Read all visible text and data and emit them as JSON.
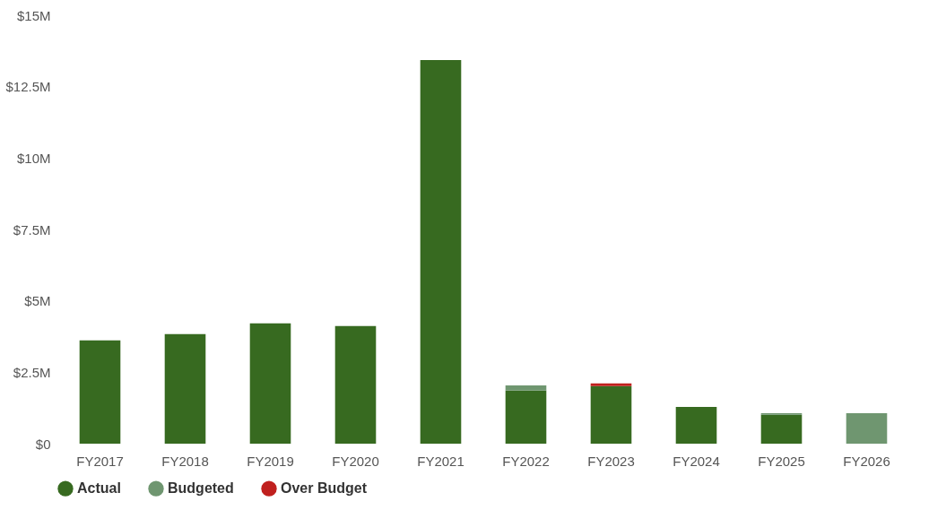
{
  "chart_data": {
    "type": "bar",
    "stacked": true,
    "categories": [
      "FY2017",
      "FY2018",
      "FY2019",
      "FY2020",
      "FY2021",
      "FY2022",
      "FY2023",
      "FY2024",
      "FY2025",
      "FY2026"
    ],
    "series": [
      {
        "name": "Actual",
        "color": "#376a20",
        "values": [
          3.62,
          3.84,
          4.21,
          4.12,
          13.43,
          1.86,
          2.02,
          1.29,
          1.01,
          null
        ]
      },
      {
        "name": "Budgeted",
        "color": "#6f9670",
        "values": [
          null,
          null,
          null,
          null,
          null,
          0.18,
          null,
          null,
          0.06,
          1.07
        ]
      },
      {
        "name": "Over Budget",
        "color": "#c0201e",
        "values": [
          null,
          null,
          null,
          null,
          null,
          null,
          0.09,
          null,
          null,
          null
        ]
      }
    ],
    "ylim": [
      0,
      15
    ],
    "yticks": [
      {
        "value": 0,
        "label": "$0"
      },
      {
        "value": 2.5,
        "label": "$2.5M"
      },
      {
        "value": 5,
        "label": "$5M"
      },
      {
        "value": 7.5,
        "label": "$7.5M"
      },
      {
        "value": 10,
        "label": "$10M"
      },
      {
        "value": 12.5,
        "label": "$12.5M"
      },
      {
        "value": 15,
        "label": "$15M"
      }
    ],
    "grid": false,
    "legend": "bottom"
  }
}
